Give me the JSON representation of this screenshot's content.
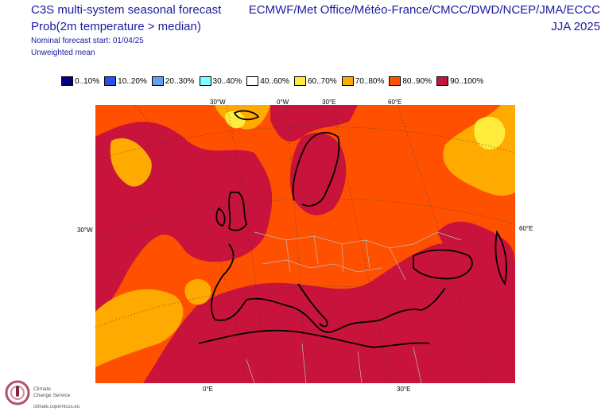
{
  "header": {
    "left_title": "C3S multi-system seasonal forecast",
    "left_subtitle": "Prob(2m temperature > median)",
    "nominal_start": "Nominal forecast start: 01/04/25",
    "weighting": "Unweighted mean",
    "right_title": "ECMWF/Met Office/Météo-France/CMCC/DWD/NCEP/JMA/ECCC",
    "right_subtitle": "JJA 2025"
  },
  "legend": [
    {
      "label": "0..10%",
      "color": "#000080"
    },
    {
      "label": "10..20%",
      "color": "#2850f0"
    },
    {
      "label": "20..30%",
      "color": "#64a0f0"
    },
    {
      "label": "30..40%",
      "color": "#80ffff"
    },
    {
      "label": "40..60%",
      "color": "#ffffff"
    },
    {
      "label": "60..70%",
      "color": "#ffeb3c"
    },
    {
      "label": "70..80%",
      "color": "#ffaa00"
    },
    {
      "label": "80..90%",
      "color": "#ff5000"
    },
    {
      "label": "90..100%",
      "color": "#c8143c"
    }
  ],
  "map_labels": {
    "top": [
      "30°W",
      "0°W",
      "30°E",
      "60°E"
    ],
    "left": "30°W",
    "right": "60°E",
    "bottom": [
      "0°E",
      "30°E"
    ]
  },
  "logo": {
    "name_line1": "Climate",
    "name_line2": "Change Service",
    "url": "climate.copernicus.eu"
  }
}
